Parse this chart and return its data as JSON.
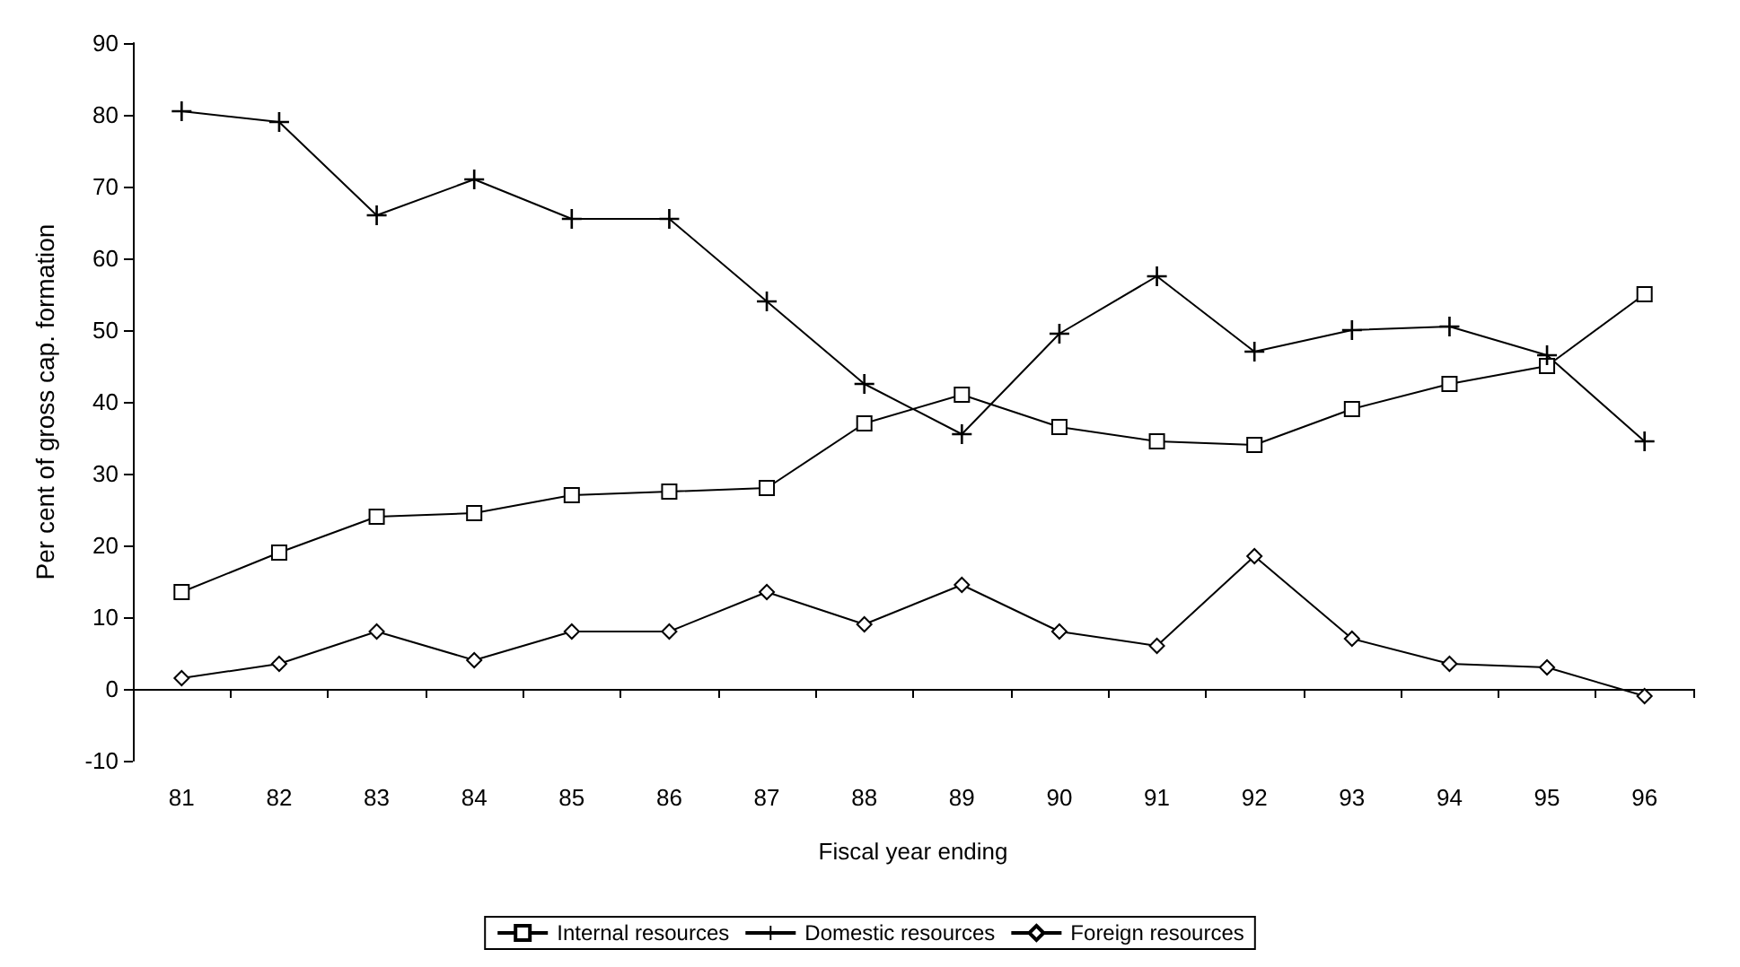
{
  "chart_data": {
    "type": "line",
    "xlabel": "Fiscal year ending",
    "ylabel": "Per cent of gross cap. formation",
    "categories": [
      "81",
      "82",
      "83",
      "84",
      "85",
      "86",
      "87",
      "88",
      "89",
      "90",
      "91",
      "92",
      "93",
      "94",
      "95",
      "96"
    ],
    "series": [
      {
        "name": "Internal resources",
        "color": "#000000",
        "marker": "square",
        "values": [
          13.5,
          19,
          24,
          24.5,
          27,
          27.5,
          28,
          37,
          41,
          36.5,
          34.5,
          34,
          39,
          42.5,
          45,
          55
        ]
      },
      {
        "name": "Domestic resources",
        "color": "#000000",
        "marker": "cross",
        "values": [
          80.5,
          79,
          66,
          71,
          65.5,
          65.5,
          54,
          42.5,
          35.5,
          49.5,
          57.5,
          47,
          50,
          50.5,
          46.5,
          34.5
        ]
      },
      {
        "name": "Foreign resources",
        "color": "#000000",
        "marker": "diamond",
        "values": [
          1.5,
          3.5,
          8,
          4,
          8,
          8,
          13.5,
          9,
          14.5,
          8,
          6,
          18.5,
          7,
          3.5,
          3,
          -1
        ]
      }
    ],
    "ylim": [
      -10,
      90
    ],
    "yticks": [
      -10,
      0,
      10,
      20,
      30,
      40,
      50,
      60,
      70,
      80,
      90
    ],
    "legend": "bottom"
  }
}
